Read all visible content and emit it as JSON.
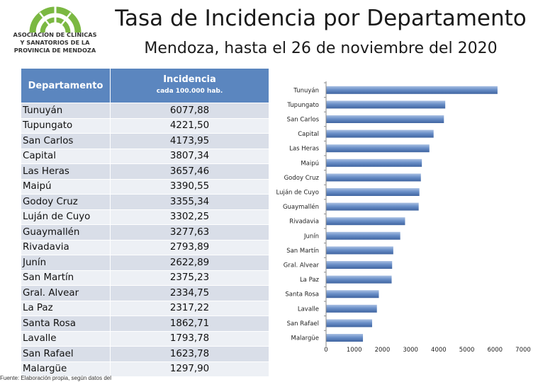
{
  "logo": {
    "lines": [
      "ASOCIACION DE CLINICAS",
      "Y SANATORIOS DE LA",
      "PROVINCIA DE MENDOZA"
    ]
  },
  "header": {
    "title": "Tasa de Incidencia por Departamento",
    "subtitle": "Mendoza, hasta el 26 de noviembre del 2020"
  },
  "table": {
    "col1": "Departamento",
    "col2": "Incidencia",
    "col2_sub": "cada 100.000 hab.",
    "rows": [
      {
        "name": "Tunuyán",
        "value": "6077,88"
      },
      {
        "name": "Tupungato",
        "value": "4221,50"
      },
      {
        "name": "San Carlos",
        "value": "4173,95"
      },
      {
        "name": "Capital",
        "value": "3807,34"
      },
      {
        "name": "Las Heras",
        "value": "3657,46"
      },
      {
        "name": "Maipú",
        "value": "3390,55"
      },
      {
        "name": "Godoy Cruz",
        "value": "3355,34"
      },
      {
        "name": "Luján de Cuyo",
        "value": "3302,25"
      },
      {
        "name": "Guaymallén",
        "value": "3277,63"
      },
      {
        "name": "Rivadavia",
        "value": "2793,89"
      },
      {
        "name": "Junín",
        "value": "2622,89"
      },
      {
        "name": "San Martín",
        "value": "2375,23"
      },
      {
        "name": "Gral. Alvear",
        "value": "2334,75"
      },
      {
        "name": "La Paz",
        "value": "2317,22"
      },
      {
        "name": "Santa Rosa",
        "value": "1862,71"
      },
      {
        "name": "Lavalle",
        "value": "1793,78"
      },
      {
        "name": "San Rafael",
        "value": "1623,78"
      },
      {
        "name": "Malargüe",
        "value": "1297,90"
      }
    ]
  },
  "chart_data": {
    "type": "bar",
    "orientation": "horizontal",
    "categories": [
      "Tunuyán",
      "Tupungato",
      "San Carlos",
      "Capital",
      "Las Heras",
      "Maipú",
      "Godoy Cruz",
      "Luján de Cuyo",
      "Guaymallén",
      "Rivadavia",
      "Junín",
      "San Martín",
      "Gral. Alvear",
      "La Paz",
      "Santa Rosa",
      "Lavalle",
      "San Rafael",
      "Malargüe"
    ],
    "values": [
      6077.88,
      4221.5,
      4173.95,
      3807.34,
      3657.46,
      3390.55,
      3355.34,
      3302.25,
      3277.63,
      2793.89,
      2622.89,
      2375.23,
      2334.75,
      2317.22,
      1862.71,
      1793.78,
      1623.78,
      1297.9
    ],
    "xlim": [
      0,
      7000
    ],
    "xticks": [
      0,
      1000,
      2000,
      3000,
      4000,
      5000,
      6000,
      7000
    ],
    "bar_color": "#6a8fc8",
    "title": "",
    "xlabel": "",
    "ylabel": ""
  },
  "footer": {
    "source": "Fuente: Elaboración propia, según datos del"
  }
}
